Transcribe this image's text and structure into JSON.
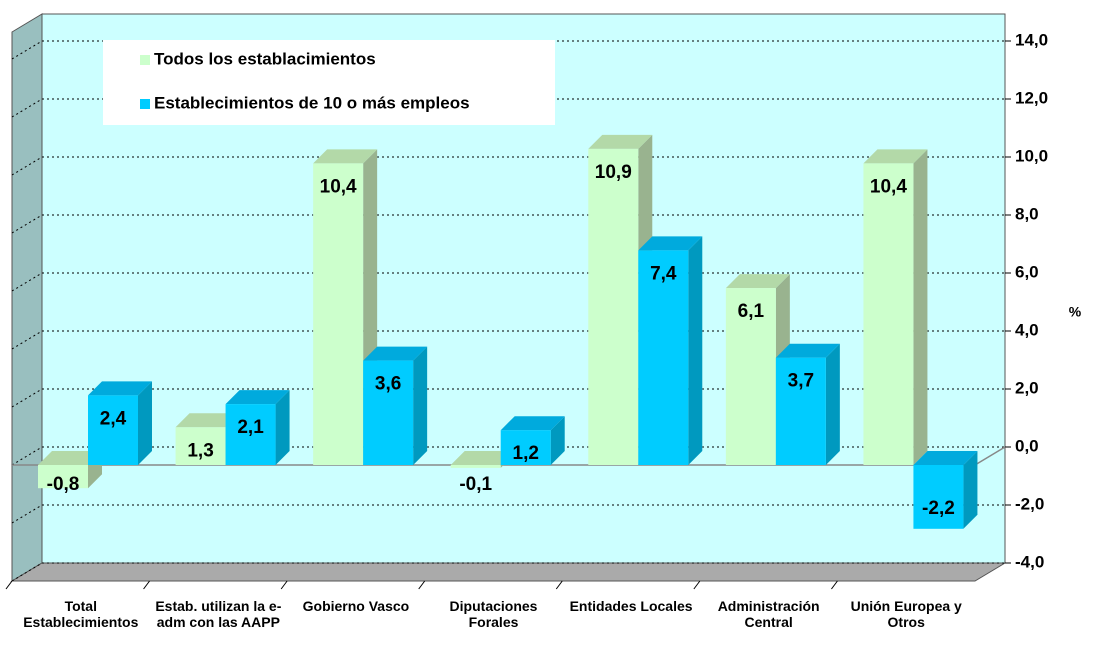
{
  "chart_data": {
    "type": "bar3d",
    "categories": [
      "Total Establecimientos",
      "Estab. utilizan la e-adm con las AAPP",
      "Gobierno Vasco",
      "Diputaciones Forales",
      "Entidades Locales",
      "Administración Central",
      "Unión Europea y Otros"
    ],
    "series": [
      {
        "name": "Todos los establacimientos",
        "color": "#ccffcc",
        "values": [
          -0.8,
          1.3,
          10.4,
          -0.1,
          10.9,
          6.1,
          10.4
        ],
        "value_labels": [
          "-0,8",
          "1,3",
          "10,4",
          "-0,1",
          "10,9",
          "6,1",
          "10,4"
        ]
      },
      {
        "name": "Establecimientos de 10 o más empleos",
        "color": "#00ccff",
        "values": [
          2.4,
          2.1,
          3.6,
          1.2,
          7.4,
          3.7,
          -2.2
        ],
        "value_labels": [
          "2,4",
          "2,1",
          "3,6",
          "1,2",
          "7,4",
          "3,7",
          "-2,2"
        ]
      }
    ],
    "ylabel": "%",
    "ylim": [
      -4,
      14
    ],
    "yticks": [
      {
        "value": -4,
        "label": "-4,0"
      },
      {
        "value": -2,
        "label": "-2,0"
      },
      {
        "value": 0,
        "label": "0,0"
      },
      {
        "value": 2,
        "label": "2,0"
      },
      {
        "value": 4,
        "label": "4,0"
      },
      {
        "value": 6,
        "label": "6,0"
      },
      {
        "value": 8,
        "label": "8,0"
      },
      {
        "value": 10,
        "label": "10,0"
      },
      {
        "value": 12,
        "label": "12,0"
      },
      {
        "value": 14,
        "label": "14,0"
      }
    ],
    "grid": true,
    "legend": "upper left"
  }
}
